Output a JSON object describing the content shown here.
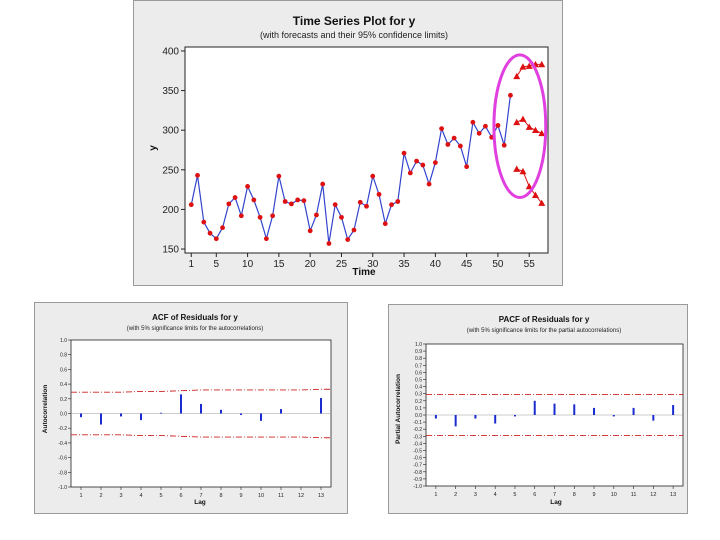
{
  "chart_data": [
    {
      "type": "line",
      "title": "Time Series Plot for y",
      "subtitle": "(with forecasts and their 95% confidence limits)",
      "xlabel": "Time",
      "ylabel": "y",
      "xlim": [
        0,
        58
      ],
      "ylim": [
        145,
        405
      ],
      "xticks": [
        1,
        5,
        10,
        15,
        20,
        25,
        30,
        35,
        40,
        45,
        50,
        55
      ],
      "yticks": [
        150,
        200,
        250,
        300,
        350,
        400
      ],
      "grid": false,
      "series": [
        {
          "name": "y",
          "marker": "circle",
          "color": "#3344cc",
          "marker_color": "#dd1111",
          "x": [
            1,
            2,
            3,
            4,
            5,
            6,
            7,
            8,
            9,
            10,
            11,
            12,
            13,
            14,
            15,
            16,
            17,
            18,
            19,
            20,
            21,
            22,
            23,
            24,
            25,
            26,
            27,
            28,
            29,
            30,
            31,
            32,
            33,
            34,
            35,
            36,
            37,
            38,
            39,
            40,
            41,
            42,
            43,
            44,
            45,
            46,
            47,
            48,
            49,
            50,
            51,
            52
          ],
          "values": [
            206,
            243,
            184,
            170,
            163,
            177,
            207,
            215,
            192,
            229,
            212,
            190,
            163,
            192,
            242,
            210,
            207,
            212,
            211,
            173,
            193,
            232,
            157,
            206,
            190,
            162,
            174,
            209,
            204,
            242,
            219,
            182,
            206,
            210,
            271,
            246,
            261,
            256,
            232,
            259,
            302,
            282,
            290,
            280,
            254,
            310,
            296,
            305,
            291,
            306,
            281,
            344
          ]
        },
        {
          "name": "Forecast",
          "marker": "triangle",
          "color": "#dd1111",
          "x": [
            53,
            54,
            55,
            56,
            57
          ],
          "values": [
            310,
            314,
            304,
            300,
            296
          ]
        },
        {
          "name": "Upper 95% limit",
          "marker": "triangle",
          "color": "#dd1111",
          "x": [
            53,
            54,
            55,
            56,
            57
          ],
          "values": [
            368,
            380,
            381,
            383,
            383
          ]
        },
        {
          "name": "Lower 95% limit",
          "marker": "triangle",
          "color": "#dd1111",
          "x": [
            53,
            54,
            55,
            56,
            57
          ],
          "values": [
            251,
            248,
            229,
            218,
            208
          ]
        }
      ],
      "annotation": {
        "shape": "ellipse",
        "color": "#e040e0",
        "x_range": [
          50,
          57
        ],
        "y_range": [
          215,
          395
        ]
      }
    },
    {
      "type": "bar",
      "title": "ACF of Residuals for y",
      "subtitle": "(with 5% significance limits for the autocorrelations)",
      "xlabel": "Lag",
      "ylabel": "Autocorrelation",
      "categories": [
        1,
        2,
        3,
        4,
        5,
        6,
        7,
        8,
        9,
        10,
        11,
        12,
        13
      ],
      "values": [
        -0.05,
        -0.15,
        -0.04,
        -0.09,
        0.01,
        0.26,
        0.13,
        0.05,
        -0.02,
        -0.1,
        0.06,
        0.0,
        0.21
      ],
      "limits": {
        "upper": [
          0.29,
          0.29,
          0.29,
          0.3,
          0.3,
          0.31,
          0.32,
          0.32,
          0.32,
          0.32,
          0.32,
          0.32,
          0.33
        ],
        "lower": [
          -0.29,
          -0.29,
          -0.29,
          -0.3,
          -0.3,
          -0.31,
          -0.32,
          -0.32,
          -0.32,
          -0.32,
          -0.32,
          -0.32,
          -0.33
        ]
      },
      "xlim": [
        0.5,
        13.5
      ],
      "ylim": [
        -1.0,
        1.0
      ],
      "yticks": [
        "-1.0",
        "-0.8",
        "-0.6",
        "-0.4",
        "-0.2",
        "0.0",
        "0.2",
        "0.4",
        "0.6",
        "0.8",
        "1.0"
      ],
      "bar_color": "#1a2bd0",
      "limit_color": "#cc2222"
    },
    {
      "type": "bar",
      "title": "PACF of Residuals for y",
      "subtitle": "(with 5% significance limits for the partial autocorrelations)",
      "xlabel": "Lag",
      "ylabel": "Partial Autocorrelation",
      "categories": [
        1,
        2,
        3,
        4,
        5,
        6,
        7,
        8,
        9,
        10,
        11,
        12,
        13
      ],
      "values": [
        -0.05,
        -0.16,
        -0.05,
        -0.12,
        -0.02,
        0.2,
        0.16,
        0.15,
        0.1,
        -0.02,
        0.1,
        -0.08,
        0.14
      ],
      "limits": {
        "upper": [
          0.29,
          0.29,
          0.29,
          0.29,
          0.29,
          0.29,
          0.29,
          0.29,
          0.29,
          0.29,
          0.29,
          0.29,
          0.29
        ],
        "lower": [
          -0.29,
          -0.29,
          -0.29,
          -0.29,
          -0.29,
          -0.29,
          -0.29,
          -0.29,
          -0.29,
          -0.29,
          -0.29,
          -0.29,
          -0.29
        ]
      },
      "xlim": [
        0.5,
        13.5
      ],
      "ylim": [
        -1.0,
        1.0
      ],
      "yticks": [
        "-1.0",
        "-0.9",
        "-0.8",
        "-0.7",
        "-0.6",
        "-0.5",
        "-0.4",
        "-0.3",
        "-0.2",
        "-0.1",
        "0.0",
        "0.1",
        "0.2",
        "0.3",
        "0.4",
        "0.5",
        "0.6",
        "0.7",
        "0.8",
        "0.9",
        "1.0"
      ],
      "bar_color": "#1a2bd0",
      "limit_color": "#cc2222"
    }
  ]
}
